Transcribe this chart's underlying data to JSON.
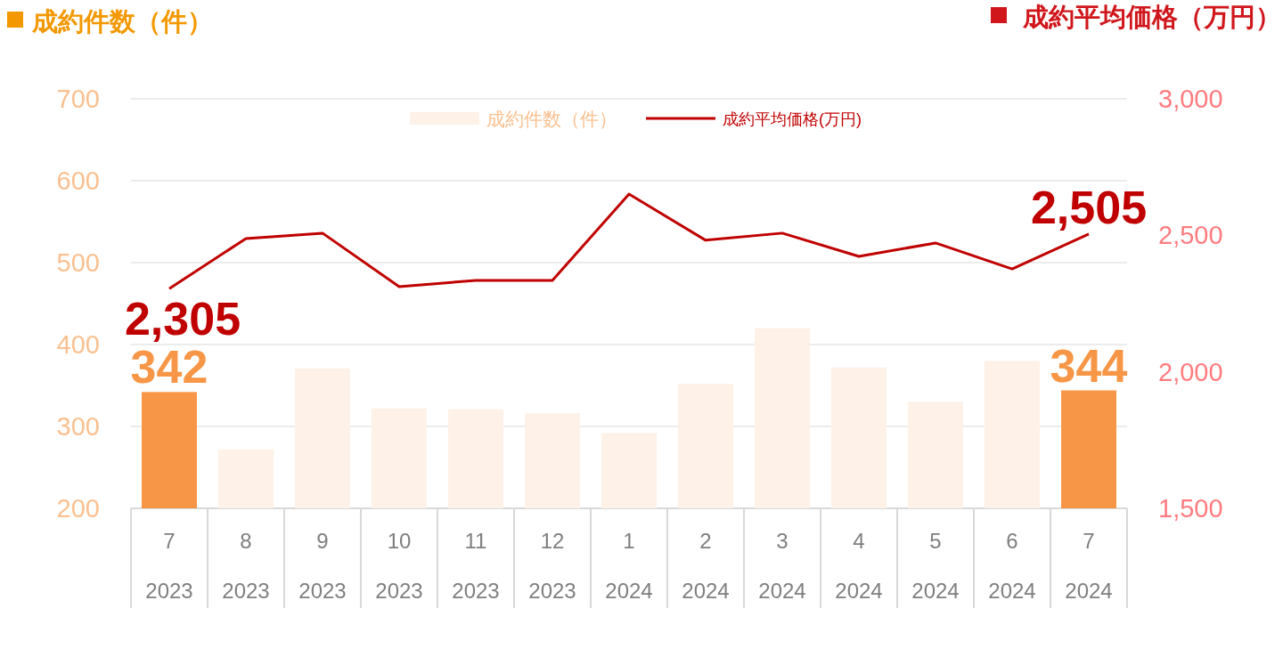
{
  "chart_data": {
    "type": "bar",
    "ylabel": "成約件数（件）",
    "y2label": "成約平均価格（万円）",
    "categories": [
      "7\n2023",
      "8\n2023",
      "9\n2023",
      "10\n2023",
      "11\n2023",
      "12\n2023",
      "1\n2024",
      "2\n2024",
      "3\n2024",
      "4\n2024",
      "5\n2024",
      "6\n2024",
      "7\n2024"
    ],
    "series": [
      {
        "name": "成約件数（件）",
        "color": "#fdf1e8",
        "colors": [
          "#f79646",
          "#fdf1e8",
          "#fdf1e8",
          "#fdf1e8",
          "#fdf1e8",
          "#fdf1e8",
          "#fdf1e8",
          "#fdf1e8",
          "#fdf1e8",
          "#fdf1e8",
          "#fdf1e8",
          "#fdf1e8",
          "#f79646"
        ],
        "values": [
          342,
          272,
          371,
          322,
          321,
          316,
          292,
          352,
          420,
          372,
          330,
          380,
          344
        ],
        "value_labels": [
          "342",
          null,
          null,
          null,
          null,
          null,
          null,
          null,
          null,
          null,
          null,
          null,
          "344"
        ]
      },
      {
        "name": "成約平均価格(万円)",
        "type": "line",
        "axis": "y2",
        "color": "#c00000",
        "values": [
          2305,
          2488,
          2508,
          2312,
          2335,
          2335,
          2651,
          2482,
          2508,
          2423,
          2472,
          2377,
          2505
        ],
        "value_labels": [
          "2,305",
          null,
          null,
          null,
          null,
          null,
          null,
          null,
          null,
          null,
          null,
          null,
          "2,505"
        ]
      }
    ],
    "ylim": [
      200,
      700
    ],
    "yticks": [
      200,
      300,
      400,
      500,
      600,
      700
    ],
    "y2lim": [
      1500,
      3000
    ],
    "y2ticks": [
      {
        "value": 1500,
        "label": "1,500"
      },
      {
        "value": 2000,
        "label": "2,000"
      },
      {
        "value": 2500,
        "label": "2,500"
      },
      {
        "value": 3000,
        "label": "3,000"
      }
    ],
    "grid": "y",
    "legend": "top"
  }
}
